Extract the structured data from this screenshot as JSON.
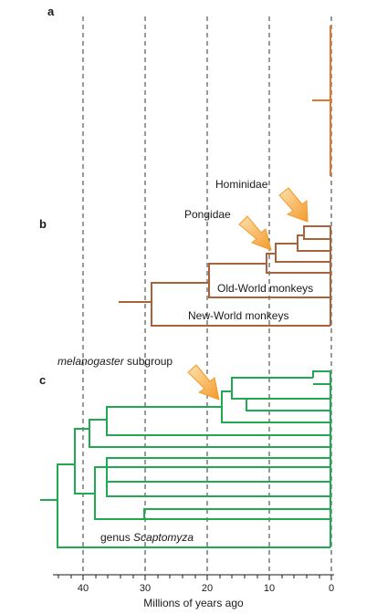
{
  "panels": {
    "a": "a",
    "b": "b",
    "c": "c"
  },
  "tree_b": {
    "labels": {
      "hominidae": "Hominidae",
      "pongidae": "Pongidae",
      "old_world": "Old-World monkeys",
      "new_world": "New-World monkeys"
    }
  },
  "tree_c": {
    "labels": {
      "melanogaster_italic": "melanogaster",
      "melanogaster_rest": " subgroup",
      "scaptomyza_prefix": "genus ",
      "scaptomyza_italic": "Scaptomyza"
    }
  },
  "axis": {
    "label": "Millions of years ago",
    "ticks": [
      "40",
      "30",
      "20",
      "10",
      "0"
    ],
    "tick_values": [
      40,
      30,
      20,
      10,
      0
    ]
  },
  "colors": {
    "panel_a": "#e8732b",
    "panel_b": "#a9633a",
    "panel_c": "#1faa52",
    "arrow": "#f4a23a",
    "dashed": "#333333"
  }
}
